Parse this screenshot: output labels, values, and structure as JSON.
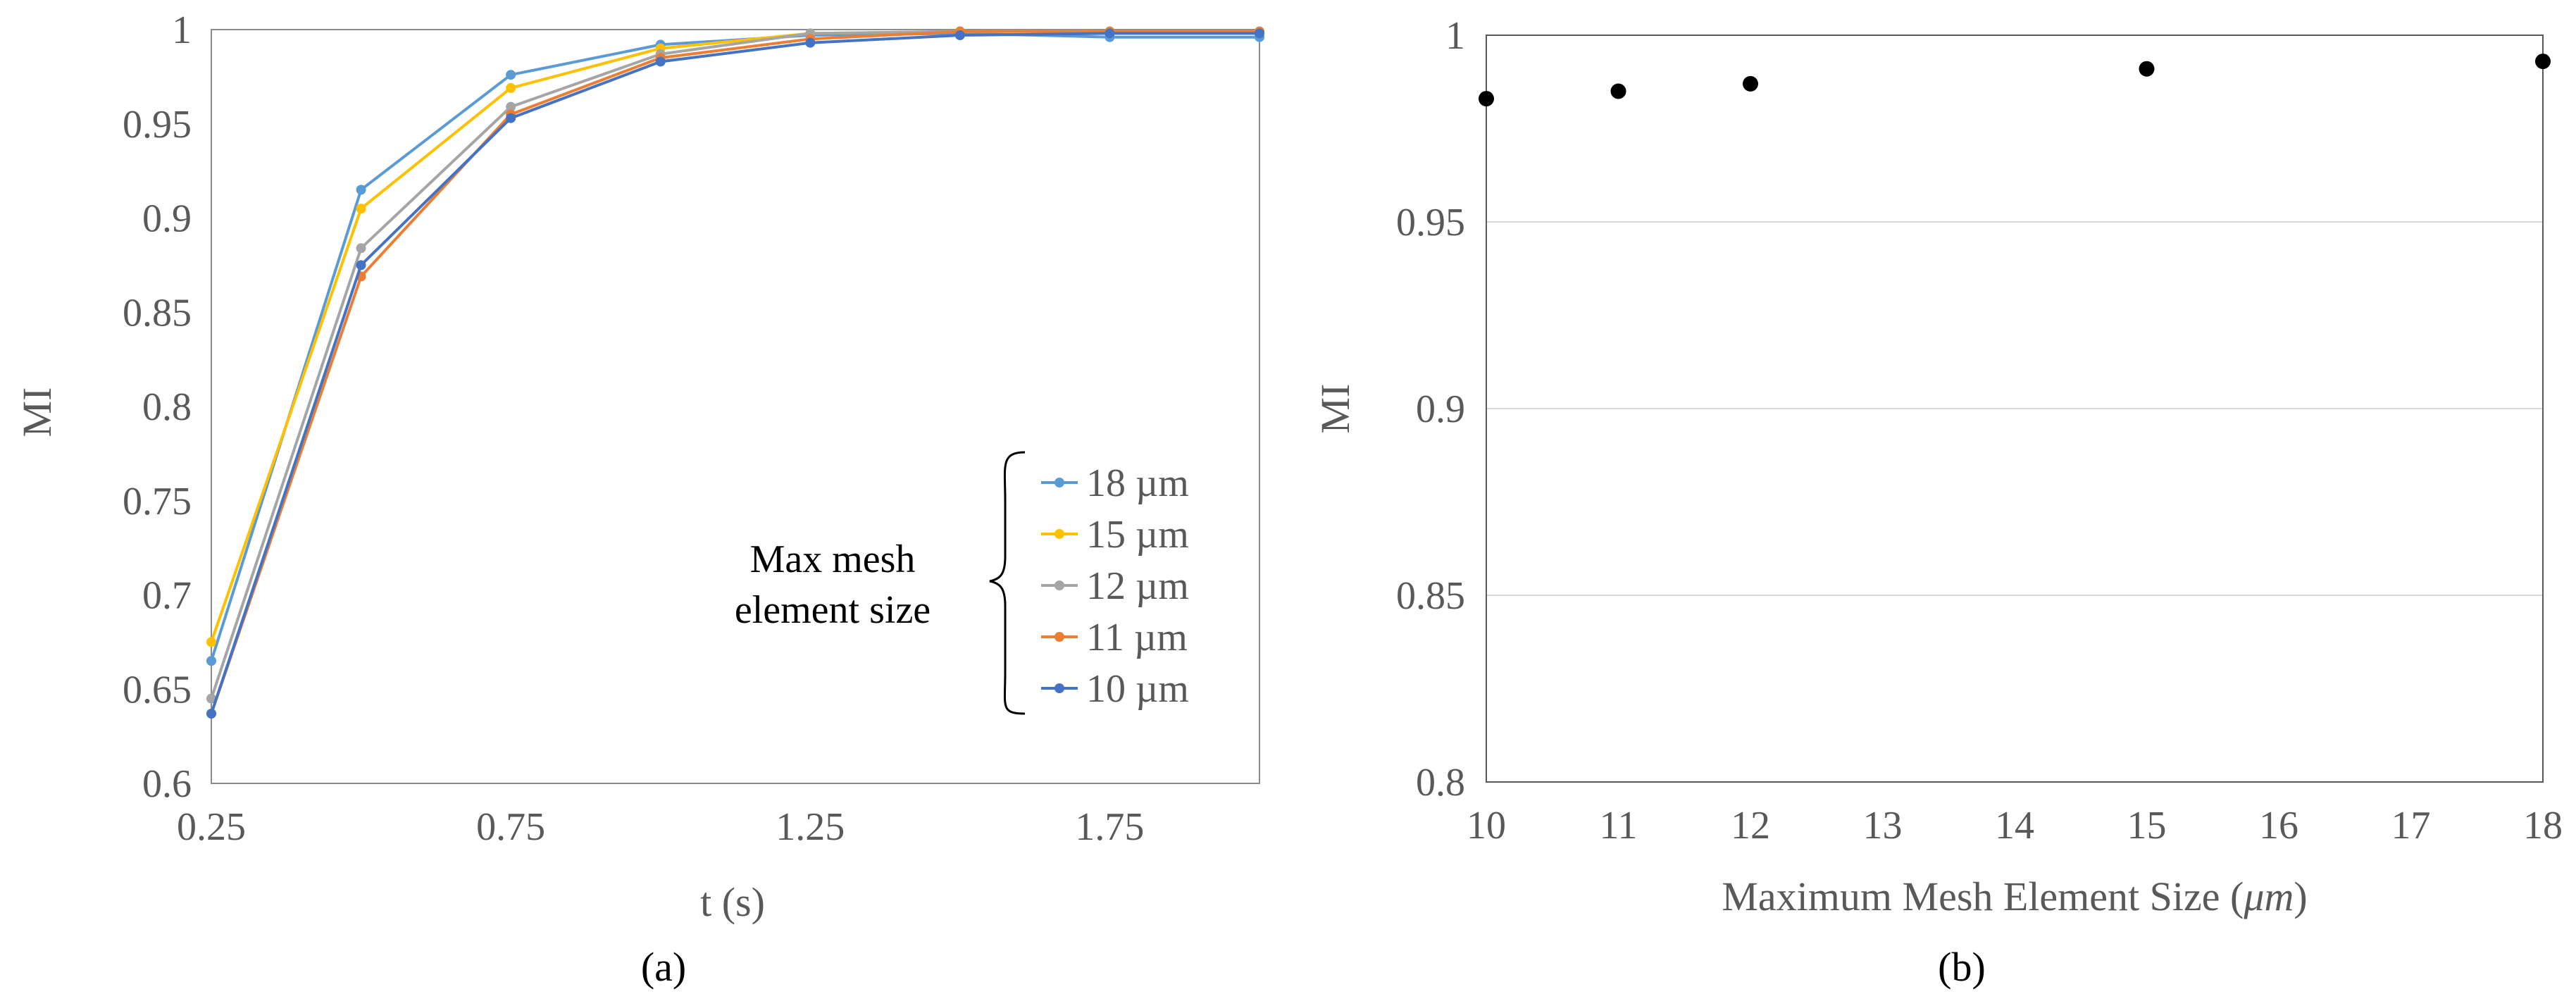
{
  "chart_data": [
    {
      "type": "line",
      "panel_label": "(a)",
      "title": "",
      "xlabel": "t (s)",
      "ylabel": "MI",
      "xlim": [
        0.25,
        2.0
      ],
      "ylim": [
        0.6,
        1.0
      ],
      "x_ticks": [
        "0.25",
        "0.75",
        "1.25",
        "1.75"
      ],
      "y_ticks": [
        "0.6",
        "0.65",
        "0.7",
        "0.75",
        "0.8",
        "0.85",
        "0.9",
        "0.95",
        "1"
      ],
      "x": [
        0.25,
        0.5,
        0.75,
        1.0,
        1.25,
        1.5,
        1.75,
        2.0
      ],
      "grid": false,
      "legend_position": "right",
      "legend_title": [
        "Max mesh",
        "element size"
      ],
      "series": [
        {
          "name": "18 µm",
          "color": "#5B9BD5",
          "values": [
            0.665,
            0.915,
            0.976,
            0.992,
            0.997,
            0.998,
            0.996,
            0.996
          ]
        },
        {
          "name": "15 µm",
          "color": "#FFC000",
          "values": [
            0.675,
            0.905,
            0.969,
            0.99,
            0.998,
            0.999,
            0.999,
            0.999
          ]
        },
        {
          "name": "12 µm",
          "color": "#A5A5A5",
          "values": [
            0.645,
            0.884,
            0.959,
            0.987,
            0.998,
            0.999,
            0.999,
            0.999
          ]
        },
        {
          "name": "11 µm",
          "color": "#ED7D31",
          "values": [
            0.637,
            0.869,
            0.955,
            0.985,
            0.995,
            0.999,
            0.999,
            0.999
          ]
        },
        {
          "name": "10 µm",
          "color": "#4472C4",
          "values": [
            0.637,
            0.875,
            0.953,
            0.983,
            0.993,
            0.997,
            0.998,
            0.998
          ]
        }
      ]
    },
    {
      "type": "scatter",
      "panel_label": "(b)",
      "title": "",
      "xlabel": "Maximum Mesh Element Size (",
      "xlabel_unit": "μm",
      "xlabel_close": ")",
      "ylabel": "MI",
      "xlim": [
        10,
        18
      ],
      "ylim": [
        0.8,
        1.0
      ],
      "x_ticks": [
        "10",
        "11",
        "12",
        "13",
        "14",
        "15",
        "16",
        "17",
        "18"
      ],
      "y_ticks": [
        "0.8",
        "0.85",
        "0.9",
        "0.95",
        "1"
      ],
      "grid": true,
      "marker_color": "#000000",
      "x": [
        10,
        11,
        12,
        15,
        18
      ],
      "values": [
        0.983,
        0.985,
        0.987,
        0.991,
        0.993
      ]
    }
  ]
}
